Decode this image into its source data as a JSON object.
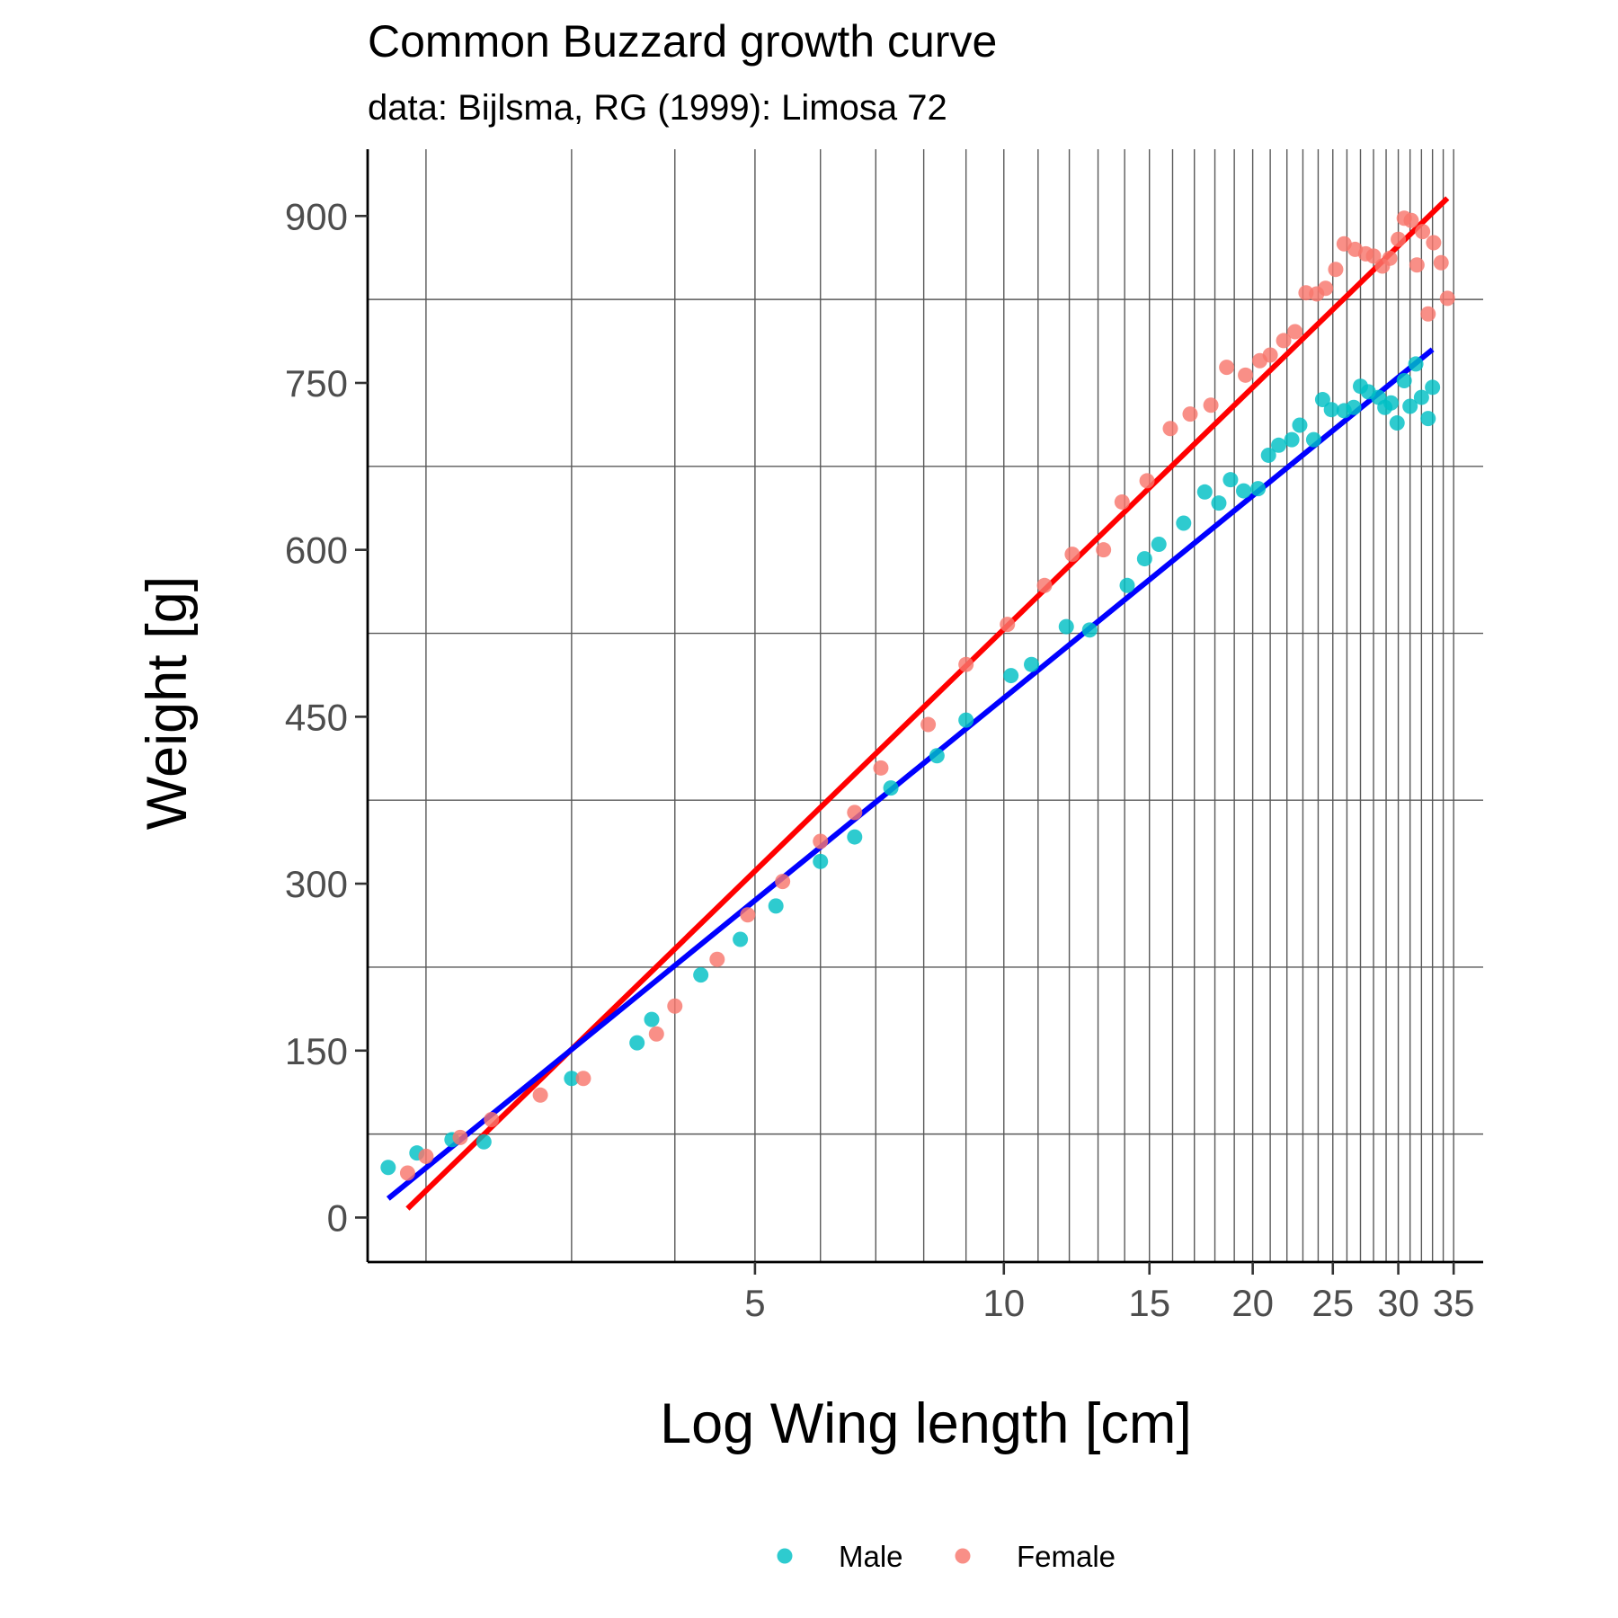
{
  "chart_data": {
    "type": "scatter",
    "title": "Common Buzzard growth curve",
    "subtitle": "data: Bijlsma, RG (1999): Limosa 72",
    "xlabel": "Log Wing length [cm]",
    "ylabel": "Weight [g]",
    "x_scale": "log",
    "xlim": [
      1.7,
      38
    ],
    "ylim": [
      -40,
      960
    ],
    "grid": true,
    "legend_position": "bottom",
    "x_ticks": [
      5,
      10,
      15,
      20,
      25,
      30,
      35
    ],
    "x_tick_labels": [
      "5",
      "10",
      "15",
      "20",
      "25",
      "30",
      "35"
    ],
    "x_gridlines": [
      2,
      3,
      4,
      5,
      6,
      7,
      8,
      9,
      10,
      11,
      12,
      13,
      14,
      15,
      16,
      17,
      18,
      19,
      20,
      21,
      22,
      23,
      24,
      25,
      26,
      27,
      28,
      29,
      30,
      31,
      32,
      33,
      34,
      35
    ],
    "y_ticks": [
      0,
      150,
      300,
      450,
      600,
      750,
      900
    ],
    "y_tick_labels": [
      "0",
      "150",
      "300",
      "450",
      "600",
      "750",
      "900"
    ],
    "y_gridlines": [
      75,
      225,
      375,
      525,
      675,
      825
    ],
    "series": [
      {
        "name": "Male",
        "color": "#00BFC4",
        "points": [
          [
            1.8,
            45
          ],
          [
            1.95,
            58
          ],
          [
            2.15,
            70
          ],
          [
            2.35,
            68
          ],
          [
            3.0,
            125
          ],
          [
            3.6,
            157
          ],
          [
            3.75,
            178
          ],
          [
            4.3,
            218
          ],
          [
            4.8,
            250
          ],
          [
            5.3,
            280
          ],
          [
            6.0,
            320
          ],
          [
            6.6,
            342
          ],
          [
            7.3,
            386
          ],
          [
            8.3,
            415
          ],
          [
            9.0,
            447
          ],
          [
            10.2,
            487
          ],
          [
            10.8,
            497
          ],
          [
            11.9,
            531
          ],
          [
            12.7,
            528
          ],
          [
            14.1,
            568
          ],
          [
            14.8,
            592
          ],
          [
            15.4,
            605
          ],
          [
            16.5,
            624
          ],
          [
            17.5,
            652
          ],
          [
            18.2,
            642
          ],
          [
            18.8,
            663
          ],
          [
            19.5,
            653
          ],
          [
            20.3,
            655
          ],
          [
            20.9,
            685
          ],
          [
            21.5,
            694
          ],
          [
            22.3,
            699
          ],
          [
            22.8,
            712
          ],
          [
            23.7,
            699
          ],
          [
            24.3,
            735
          ],
          [
            24.9,
            726
          ],
          [
            25.8,
            725
          ],
          [
            26.5,
            728
          ],
          [
            27.0,
            747
          ],
          [
            27.6,
            742
          ],
          [
            28.4,
            737
          ],
          [
            28.9,
            728
          ],
          [
            29.4,
            732
          ],
          [
            29.9,
            714
          ],
          [
            30.5,
            752
          ],
          [
            31.0,
            729
          ],
          [
            31.5,
            767
          ],
          [
            32.0,
            737
          ],
          [
            32.6,
            718
          ],
          [
            33.0,
            746
          ]
        ]
      },
      {
        "name": "Female",
        "color": "#F8766D",
        "points": [
          [
            1.9,
            40
          ],
          [
            2.0,
            55
          ],
          [
            2.2,
            72
          ],
          [
            2.4,
            88
          ],
          [
            2.75,
            110
          ],
          [
            3.1,
            125
          ],
          [
            3.8,
            165
          ],
          [
            4.0,
            190
          ],
          [
            4.5,
            232
          ],
          [
            4.9,
            272
          ],
          [
            5.4,
            302
          ],
          [
            6.0,
            338
          ],
          [
            6.6,
            364
          ],
          [
            7.1,
            404
          ],
          [
            8.1,
            443
          ],
          [
            9.0,
            497
          ],
          [
            10.1,
            533
          ],
          [
            11.2,
            568
          ],
          [
            12.1,
            596
          ],
          [
            13.2,
            600
          ],
          [
            13.9,
            643
          ],
          [
            14.9,
            662
          ],
          [
            15.9,
            709
          ],
          [
            16.8,
            722
          ],
          [
            17.8,
            730
          ],
          [
            18.6,
            764
          ],
          [
            19.6,
            757
          ],
          [
            20.4,
            770
          ],
          [
            21.0,
            775
          ],
          [
            21.8,
            788
          ],
          [
            22.5,
            796
          ],
          [
            23.2,
            831
          ],
          [
            23.9,
            830
          ],
          [
            24.5,
            835
          ],
          [
            25.2,
            852
          ],
          [
            25.8,
            875
          ],
          [
            26.6,
            870
          ],
          [
            27.4,
            866
          ],
          [
            28.0,
            864
          ],
          [
            28.7,
            855
          ],
          [
            29.3,
            862
          ],
          [
            30.0,
            879
          ],
          [
            30.5,
            898
          ],
          [
            31.1,
            896
          ],
          [
            31.6,
            856
          ],
          [
            32.1,
            886
          ],
          [
            32.6,
            812
          ],
          [
            33.1,
            876
          ],
          [
            33.8,
            858
          ],
          [
            34.4,
            826
          ]
        ]
      }
    ],
    "fit_lines": [
      {
        "series": "Female",
        "color": "#FF0000",
        "from": [
          1.9,
          8
        ],
        "to": [
          34.4,
          916
        ]
      },
      {
        "series": "Male",
        "color": "#0000FF",
        "from": [
          1.8,
          17
        ],
        "to": [
          33.0,
          780
        ]
      }
    ]
  }
}
